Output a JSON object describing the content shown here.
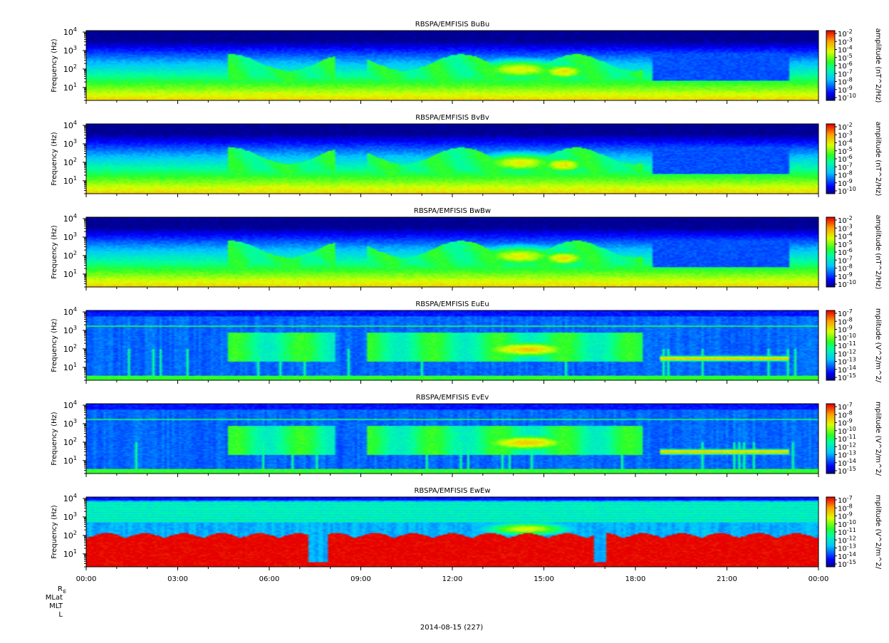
{
  "date_label": "2014-08-15 (227)",
  "ephemeris_labels": [
    "R",
    "MLat",
    "MLT",
    "L"
  ],
  "ephemeris_subscript": "E",
  "chart_data": [
    {
      "type": "heatmap",
      "title": "RBSPA/EMFISIS  BuBu",
      "ylabel": "Frequency (Hz)",
      "colorbar_label": "amplitude (nT^2/Hz)",
      "colorbar_exponents": [
        -2,
        -3,
        -4,
        -5,
        -6,
        -7,
        -8,
        -9,
        -10
      ],
      "y_tick_exponents": [
        1,
        2,
        3,
        4
      ],
      "x_ticks": [
        "00:00",
        "03:00",
        "06:00",
        "09:00",
        "12:00",
        "15:00",
        "18:00",
        "21:00",
        "00:00"
      ],
      "y_scale": "log",
      "ylim_hz": [
        2,
        12000
      ],
      "kind": "magnetic"
    },
    {
      "type": "heatmap",
      "title": "RBSPA/EMFISIS  BvBv",
      "ylabel": "Frequency (Hz)",
      "colorbar_label": "amplitude (nT^2/Hz)",
      "colorbar_exponents": [
        -2,
        -3,
        -4,
        -5,
        -6,
        -7,
        -8,
        -9,
        -10
      ],
      "y_tick_exponents": [
        1,
        2,
        3,
        4
      ],
      "x_ticks": [
        "00:00",
        "03:00",
        "06:00",
        "09:00",
        "12:00",
        "15:00",
        "18:00",
        "21:00",
        "00:00"
      ],
      "y_scale": "log",
      "ylim_hz": [
        2,
        12000
      ],
      "kind": "magnetic"
    },
    {
      "type": "heatmap",
      "title": "RBSPA/EMFISIS  BwBw",
      "ylabel": "Frequency (Hz)",
      "colorbar_label": "amplitude (nT^2/Hz)",
      "colorbar_exponents": [
        -2,
        -3,
        -4,
        -5,
        -6,
        -7,
        -8,
        -9,
        -10
      ],
      "y_tick_exponents": [
        1,
        2,
        3,
        4
      ],
      "x_ticks": [
        "00:00",
        "03:00",
        "06:00",
        "09:00",
        "12:00",
        "15:00",
        "18:00",
        "21:00",
        "00:00"
      ],
      "y_scale": "log",
      "ylim_hz": [
        2,
        12000
      ],
      "kind": "magnetic"
    },
    {
      "type": "heatmap",
      "title": "RBSPA/EMFISIS  EuEu",
      "ylabel": "Frequency (Hz)",
      "colorbar_label": "mplitude (V^2/m^2/",
      "colorbar_exponents": [
        -7,
        -8,
        -9,
        -10,
        -11,
        -12,
        -13,
        -14,
        -15
      ],
      "y_tick_exponents": [
        1,
        2,
        3,
        4
      ],
      "x_ticks": [
        "00:00",
        "03:00",
        "06:00",
        "09:00",
        "12:00",
        "15:00",
        "18:00",
        "21:00",
        "00:00"
      ],
      "y_scale": "log",
      "ylim_hz": [
        2,
        12000
      ],
      "kind": "electric"
    },
    {
      "type": "heatmap",
      "title": "RBSPA/EMFISIS  EvEv",
      "ylabel": "Frequency (Hz)",
      "colorbar_label": "mplitude (V^2/m^2/",
      "colorbar_exponents": [
        -7,
        -8,
        -9,
        -10,
        -11,
        -12,
        -13,
        -14,
        -15
      ],
      "y_tick_exponents": [
        1,
        2,
        3,
        4
      ],
      "x_ticks": [
        "00:00",
        "03:00",
        "06:00",
        "09:00",
        "12:00",
        "15:00",
        "18:00",
        "21:00",
        "00:00"
      ],
      "y_scale": "log",
      "ylim_hz": [
        2,
        12000
      ],
      "kind": "electric"
    },
    {
      "type": "heatmap",
      "title": "RBSPA/EMFISIS  EwEw",
      "ylabel": "Frequency (Hz)",
      "colorbar_label": "mplitude (V^2/m^2/",
      "colorbar_exponents": [
        -7,
        -8,
        -9,
        -10,
        -11,
        -12,
        -13,
        -14,
        -15
      ],
      "y_tick_exponents": [
        1,
        2,
        3,
        4
      ],
      "x_ticks": [
        "00:00",
        "03:00",
        "06:00",
        "09:00",
        "12:00",
        "15:00",
        "18:00",
        "21:00",
        "00:00"
      ],
      "y_scale": "log",
      "ylim_hz": [
        2,
        12000
      ],
      "kind": "ew"
    }
  ]
}
